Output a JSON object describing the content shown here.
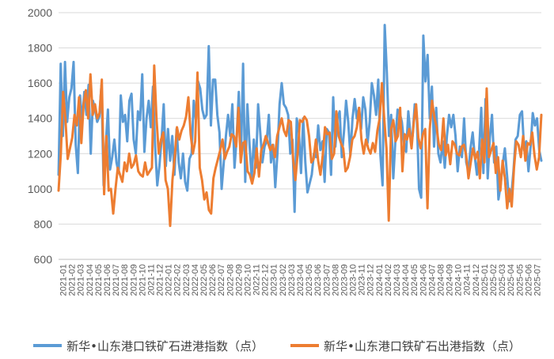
{
  "chart_data": {
    "type": "line",
    "title": "",
    "xlabel": "",
    "ylabel": "",
    "ylim": [
      600,
      2000
    ],
    "yticks": [
      600,
      800,
      1000,
      1200,
      1400,
      1600,
      1800,
      2000
    ],
    "grid": {
      "horizontal": true,
      "vertical": false
    },
    "legend_position": "bottom",
    "x_tick_labels": [
      "2021-01",
      "2021-02",
      "2021-03",
      "2021-04",
      "2021-05",
      "2021-06",
      "2021-07",
      "2021-08",
      "2021-09",
      "2021-10",
      "2021-11",
      "2021-12",
      "2022-01",
      "2022-02",
      "2022-03",
      "2022-04",
      "2022-05",
      "2022-06",
      "2022-07",
      "2022-08",
      "2022-09",
      "2022-10",
      "2022-11",
      "2022-12",
      "2023-01",
      "2023-02",
      "2023-03",
      "2023-04",
      "2023-05",
      "2023-06",
      "2023-07",
      "2023-08",
      "2023-09",
      "2023-10",
      "2023-11",
      "2023-12",
      "2024-01",
      "2024-02",
      "2024-03",
      "2024-04",
      "2024-05",
      "2024-06",
      "2024-07",
      "2024-08",
      "2024-09",
      "2024-10",
      "2024-11",
      "2024-12",
      "2025-01",
      "2025-02",
      "2025-03",
      "2025-04",
      "2025-05",
      "2025-06",
      "2025-07"
    ],
    "series": [
      {
        "name": "新华•山东港口铁矿石进港指数（点）",
        "color": "#5B9BD5",
        "values": [
          1080,
          1710,
          1300,
          1720,
          1380,
          1520,
          1570,
          1720,
          1250,
          1090,
          1530,
          1380,
          1550,
          1420,
          1590,
          1200,
          1500,
          1450,
          1380,
          1410,
          1590,
          1020,
          1250,
          1450,
          1110,
          1180,
          1280,
          1150,
          1090,
          1530,
          1380,
          1420,
          1270,
          1500,
          1540,
          1280,
          1200,
          1440,
          1390,
          1650,
          1210,
          1400,
          1500,
          1350,
          1580,
          1240,
          1020,
          1130,
          1280,
          1480,
          1130,
          1340,
          1160,
          1300,
          1080,
          1340,
          1150,
          1060,
          1200,
          1040,
          990,
          1170,
          1200,
          1500,
          1390,
          1610,
          1570,
          1450,
          1400,
          1420,
          1810,
          1360,
          1620,
          1620,
          1420,
          1320,
          1000,
          1150,
          1300,
          1420,
          1300,
          1480,
          1120,
          1290,
          1550,
          1180,
          1710,
          1040,
          1480,
          1250,
          1060,
          1280,
          1120,
          1480,
          1320,
          1150,
          1240,
          1270,
          1420,
          1150,
          1250,
          1010,
          1200,
          1480,
          1600,
          1480,
          1460,
          1420,
          1200,
          1280,
          870,
          1400,
          1320,
          1090,
          1400,
          1150,
          980,
          1030,
          1080,
          1200,
          1180,
          1360,
          1220,
          1270,
          1040,
          1340,
          1320,
          1080,
          1520,
          1240,
          1400,
          1440,
          1180,
          1320,
          1500,
          1380,
          1190,
          1400,
          1510,
          1400,
          1460,
          1340,
          1520,
          1450,
          1260,
          1380,
          1600,
          1530,
          1420,
          1620,
          1190,
          1020,
          1930,
          1660,
          1300,
          1420,
          1060,
          1280,
          1450,
          1430,
          1380,
          1260,
          1210,
          1440,
          1310,
          1300,
          1480,
          1390,
          1000,
          950,
          1870,
          1610,
          1760,
          1400,
          1580,
          1240,
          1460,
          1200,
          1150,
          1270,
          1120,
          1300,
          1420,
          1350,
          1420,
          1300,
          1100,
          1240,
          1180,
          1400,
          1150,
          1100,
          1230,
          1320,
          1180,
          1080,
          1220,
          1460,
          1090,
          1510,
          1060,
          1290,
          1420,
          1150,
          1240,
          940,
          1020,
          1140,
          1230,
          1080,
          930,
          960,
          1100,
          1280,
          1300,
          1420,
          1440,
          1220,
          1270,
          1100,
          1240,
          1430,
          1360,
          1400,
          1220,
          1160
        ]
      },
      {
        "name": "新华•山东港口铁矿石出港指数（点）",
        "color": "#ED7D31",
        "values": [
          990,
          1200,
          1550,
          1400,
          1170,
          1230,
          1290,
          1420,
          1360,
          1520,
          1260,
          1480,
          1560,
          1400,
          1650,
          1420,
          1480,
          1400,
          1430,
          1620,
          970,
          1300,
          990,
          1000,
          860,
          1000,
          1120,
          1080,
          1040,
          1150,
          1100,
          1200,
          1120,
          1140,
          1190,
          1100,
          1080,
          1070,
          1150,
          1080,
          1100,
          1120,
          1700,
          1400,
          1200,
          1280,
          1320,
          1050,
          1000,
          790,
          1050,
          1180,
          1350,
          1280,
          1330,
          1360,
          1410,
          1520,
          1310,
          1200,
          1270,
          1660,
          1120,
          1050,
          940,
          980,
          880,
          860,
          1060,
          1120,
          1170,
          1220,
          1280,
          1170,
          1210,
          1240,
          1310,
          1300,
          1240,
          1460,
          1150,
          1260,
          1270,
          1100,
          1080,
          1030,
          1090,
          1230,
          1070,
          1220,
          1250,
          1300,
          1260,
          1220,
          1250,
          1180,
          1300,
          1350,
          1400,
          1330,
          1300,
          1390,
          1380,
          1170,
          1050,
          1200,
          1390,
          1380,
          1410,
          1390,
          1300,
          1150,
          1170,
          1280,
          1160,
          1080,
          1190,
          1350,
          1310,
          1320,
          1170,
          1200,
          1440,
          1300,
          1260,
          1230,
          1100,
          1120,
          1180,
          1280,
          1300,
          1350,
          1460,
          1280,
          1200,
          1280,
          1230,
          1200,
          1260,
          1210,
          1330,
          1400,
          1600,
          1400,
          1230,
          820,
          1340,
          1390,
          1270,
          1300,
          1460,
          1100,
          1310,
          1280,
          1340,
          1230,
          1380,
          1480,
          1290,
          1230,
          1310,
          1340,
          890,
          1340,
          1500,
          1410,
          1350,
          1250,
          1220,
          1400,
          1190,
          1250,
          1140,
          1270,
          1250,
          1200,
          1190,
          1240,
          1250,
          1190,
          1060,
          1150,
          1230,
          1170,
          1210,
          1060,
          1280,
          1150,
          1570,
          1180,
          1220,
          1260,
          1090,
          1180,
          990,
          1160,
          1060,
          890,
          1000,
          900,
          1120,
          1270,
          1250,
          1180,
          1300,
          1160,
          1260,
          1250,
          1320,
          1190,
          1110,
          1180,
          1420
        ]
      }
    ]
  }
}
